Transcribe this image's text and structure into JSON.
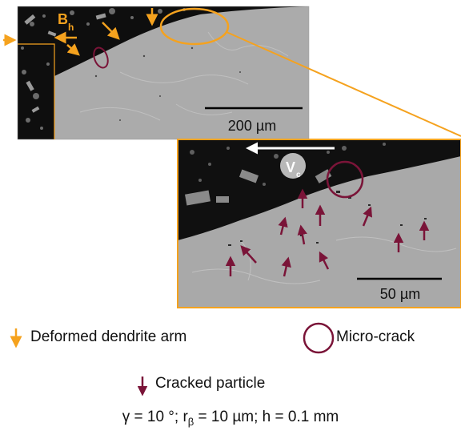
{
  "panel_top": {
    "scale_label": "200 µm",
    "label_b": "B",
    "label_b_sub": "h"
  },
  "panel_zoom": {
    "scale_label": "50 µm",
    "label_v": "V",
    "label_v_sub": "c"
  },
  "legend": {
    "deformed": "Deformed dendrite arm",
    "microcrack": "Micro-crack",
    "cracked": "Cracked particle"
  },
  "params": {
    "gamma": "γ = 10 °; r",
    "r_sub": "β",
    "rest": " = 10 µm; h = 0.1 mm"
  },
  "colors": {
    "orange": "#F5A21E",
    "maroon": "#7A1438",
    "matrix_light": "#A9A9A9",
    "matrix_dark": "#0E0E0E"
  }
}
